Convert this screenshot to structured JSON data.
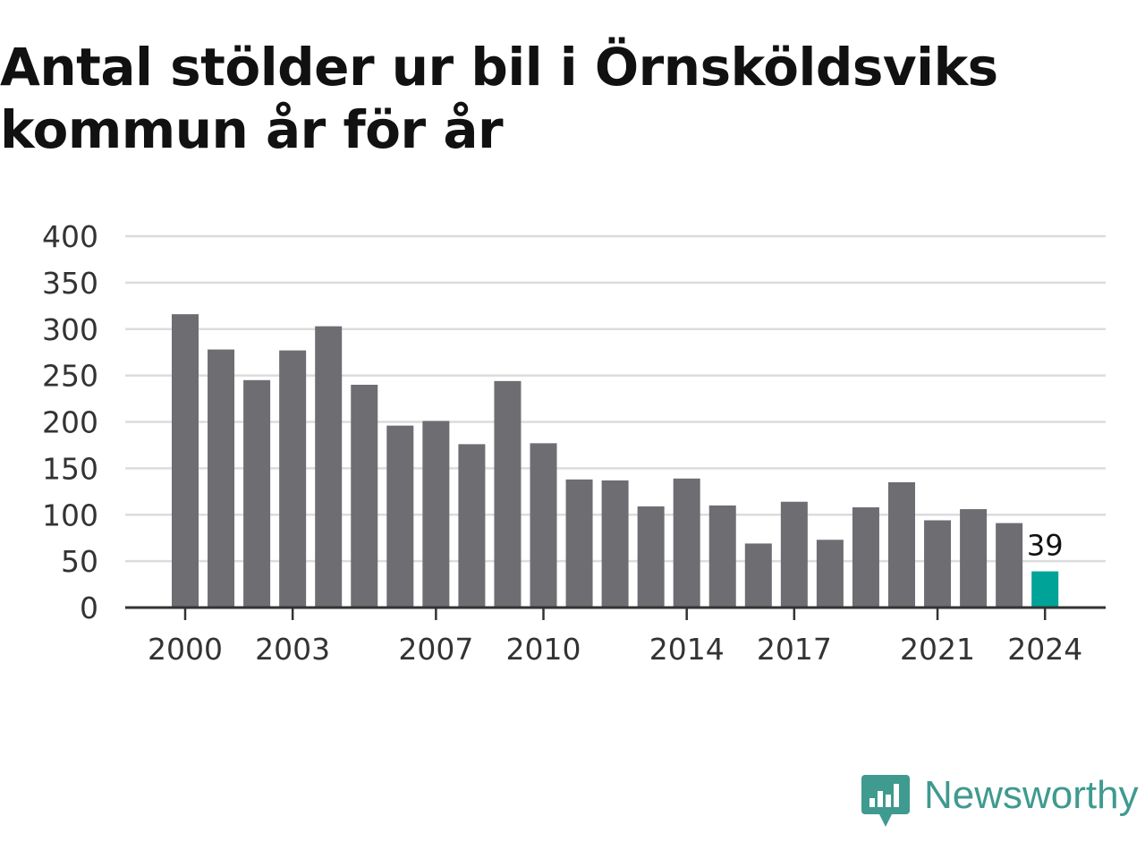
{
  "title": "Antal stölder ur bil i Örnsköldsviks kommun år för år",
  "brand": {
    "name": "Newsworthy",
    "icon": "newsworthy-logo-icon",
    "color": "#3f9a8f"
  },
  "chart_data": {
    "type": "bar",
    "title": "Antal stölder ur bil i Örnsköldsviks kommun år för år",
    "xlabel": "",
    "ylabel": "",
    "categories": [
      2000,
      2001,
      2002,
      2003,
      2004,
      2005,
      2006,
      2007,
      2008,
      2009,
      2010,
      2011,
      2012,
      2013,
      2014,
      2015,
      2016,
      2017,
      2018,
      2019,
      2020,
      2021,
      2022,
      2023,
      2024
    ],
    "values": [
      316,
      278,
      245,
      277,
      303,
      240,
      196,
      201,
      176,
      244,
      177,
      138,
      137,
      109,
      139,
      110,
      69,
      114,
      73,
      108,
      135,
      94,
      106,
      91,
      39
    ],
    "ylim": [
      0,
      400
    ],
    "yticks": [
      0,
      50,
      100,
      150,
      200,
      250,
      300,
      350,
      400
    ],
    "xtick_labels": [
      2000,
      2003,
      2007,
      2010,
      2014,
      2017,
      2021,
      2024
    ],
    "grid": true,
    "bar_color": "#6e6d72",
    "highlight": {
      "category": 2024,
      "color": "#00a398",
      "label": "39"
    }
  }
}
